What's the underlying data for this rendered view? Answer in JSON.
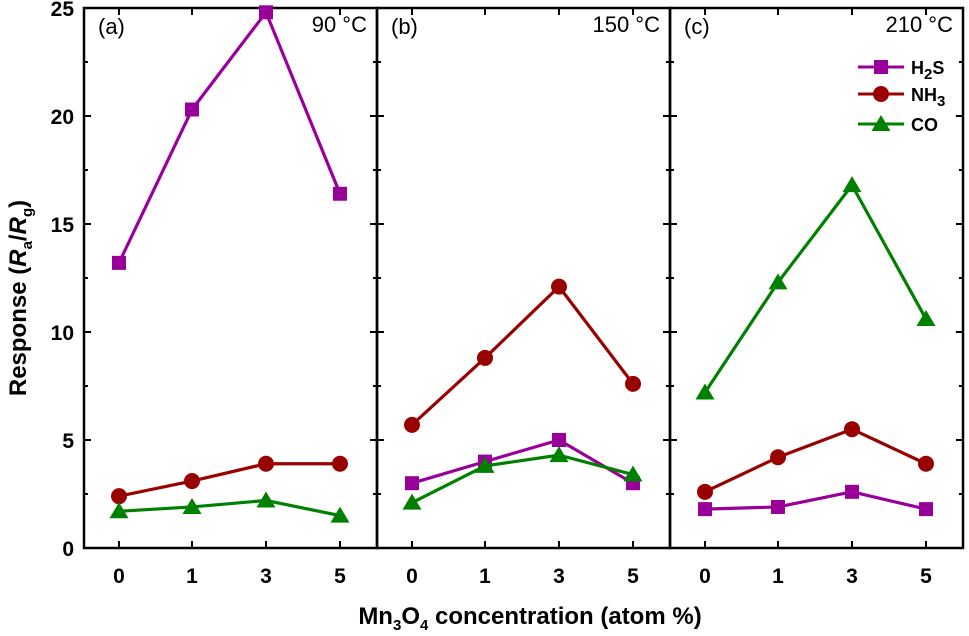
{
  "chart_data": {
    "type": "line",
    "ylabel": {
      "main": "Response (",
      "r1": "R",
      "s1": "a",
      "slash": "/",
      "r2": "R",
      "s2": "g",
      "end": ")"
    },
    "xlabel": {
      "p1": "Mn",
      "s1": "3",
      "p2": "O",
      "s2": "4",
      "p3": " concentration (atom %)"
    },
    "categories": [
      "0",
      "1",
      "3",
      "5"
    ],
    "ylim": [
      0,
      25
    ],
    "yticks": [
      "0",
      "5",
      "10",
      "15",
      "20",
      "25"
    ],
    "legend": {
      "position": "top-right of panel (c)",
      "entries": [
        {
          "name": "H2S",
          "label_main": "H",
          "label_sub": "2",
          "label_end": "S"
        },
        {
          "name": "NH3",
          "label_main": "NH",
          "label_sub": "3",
          "label_end": ""
        },
        {
          "name": "CO",
          "label_main": "CO",
          "label_sub": "",
          "label_end": ""
        }
      ]
    },
    "colors": {
      "H2S": "#990099",
      "NH3": "#990000",
      "CO": "#008000"
    },
    "markers": {
      "H2S": "square",
      "NH3": "circle",
      "CO": "triangle"
    },
    "panels": [
      {
        "label": "(a)",
        "temperature": "90 °C",
        "series": [
          {
            "name": "H2S",
            "values": [
              13.2,
              20.3,
              24.8,
              16.4
            ]
          },
          {
            "name": "NH3",
            "values": [
              2.4,
              3.1,
              3.9,
              3.9
            ]
          },
          {
            "name": "CO",
            "values": [
              1.7,
              1.9,
              2.2,
              1.5
            ]
          }
        ]
      },
      {
        "label": "(b)",
        "temperature": "150 °C",
        "series": [
          {
            "name": "H2S",
            "values": [
              3.0,
              4.0,
              5.0,
              3.0
            ]
          },
          {
            "name": "NH3",
            "values": [
              5.7,
              8.8,
              12.1,
              7.6
            ]
          },
          {
            "name": "CO",
            "values": [
              2.1,
              3.8,
              4.3,
              3.4
            ]
          }
        ]
      },
      {
        "label": "(c)",
        "temperature": "210 °C",
        "series": [
          {
            "name": "H2S",
            "values": [
              1.8,
              1.9,
              2.6,
              1.8
            ]
          },
          {
            "name": "NH3",
            "values": [
              2.6,
              4.2,
              5.5,
              3.9
            ]
          },
          {
            "name": "CO",
            "values": [
              7.2,
              12.3,
              16.8,
              10.6
            ]
          }
        ]
      }
    ]
  }
}
